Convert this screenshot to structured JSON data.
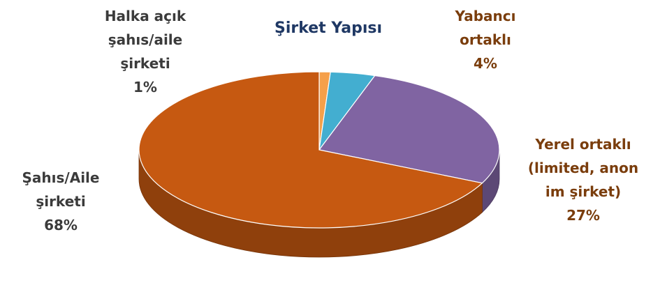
{
  "chart_data": {
    "type": "pie",
    "title": "Şirket Yapısı",
    "slices": [
      {
        "key": "halka",
        "label_lines": [
          "Halka açık",
          "şahıs/aile",
          "şirketi"
        ],
        "value": 1,
        "value_label": "1%",
        "color": "#f5a04a"
      },
      {
        "key": "yabanci",
        "label_lines": [
          "Yabancı",
          "ortaklı"
        ],
        "value": 4,
        "value_label": "4%",
        "color": "#43aed0"
      },
      {
        "key": "yerel",
        "label_lines": [
          "Yerel ortaklı",
          "(limited, anon",
          "im şirket)"
        ],
        "value": 27,
        "value_label": "27%",
        "color": "#8064a2"
      },
      {
        "key": "sahis",
        "label_lines": [
          "Şahıs/Aile",
          "şirketi"
        ],
        "value": 68,
        "value_label": "68%",
        "color": "#c65911"
      }
    ],
    "legend": "none",
    "style": "3d-pie"
  }
}
